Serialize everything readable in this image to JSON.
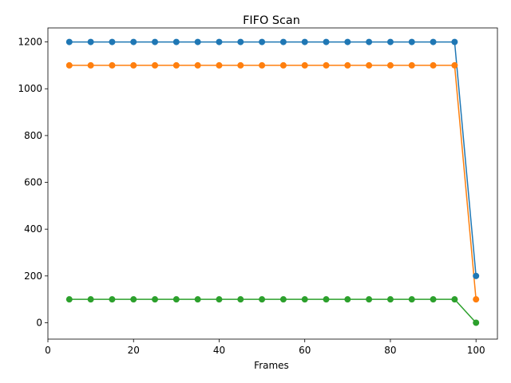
{
  "chart_data": {
    "type": "line",
    "title": "FIFO Scan",
    "xlabel": "Frames",
    "ylabel": "",
    "xlim": [
      0,
      105
    ],
    "ylim": [
      -70,
      1260
    ],
    "xticks": [
      0,
      20,
      40,
      60,
      80,
      100
    ],
    "yticks": [
      0,
      200,
      400,
      600,
      800,
      1000,
      1200
    ],
    "grid": false,
    "x": [
      5,
      10,
      15,
      20,
      25,
      30,
      35,
      40,
      45,
      50,
      55,
      60,
      65,
      70,
      75,
      80,
      85,
      90,
      95,
      100
    ],
    "series": [
      {
        "color": "#1f77b4",
        "marker": "circle",
        "values": [
          1200,
          1200,
          1200,
          1200,
          1200,
          1200,
          1200,
          1200,
          1200,
          1200,
          1200,
          1200,
          1200,
          1200,
          1200,
          1200,
          1200,
          1200,
          1200,
          200
        ]
      },
      {
        "color": "#ff7f0e",
        "marker": "circle",
        "values": [
          1100,
          1100,
          1100,
          1100,
          1100,
          1100,
          1100,
          1100,
          1100,
          1100,
          1100,
          1100,
          1100,
          1100,
          1100,
          1100,
          1100,
          1100,
          1100,
          100
        ]
      },
      {
        "color": "#2ca02c",
        "marker": "circle",
        "values": [
          100,
          100,
          100,
          100,
          100,
          100,
          100,
          100,
          100,
          100,
          100,
          100,
          100,
          100,
          100,
          100,
          100,
          100,
          100,
          0
        ]
      }
    ]
  }
}
